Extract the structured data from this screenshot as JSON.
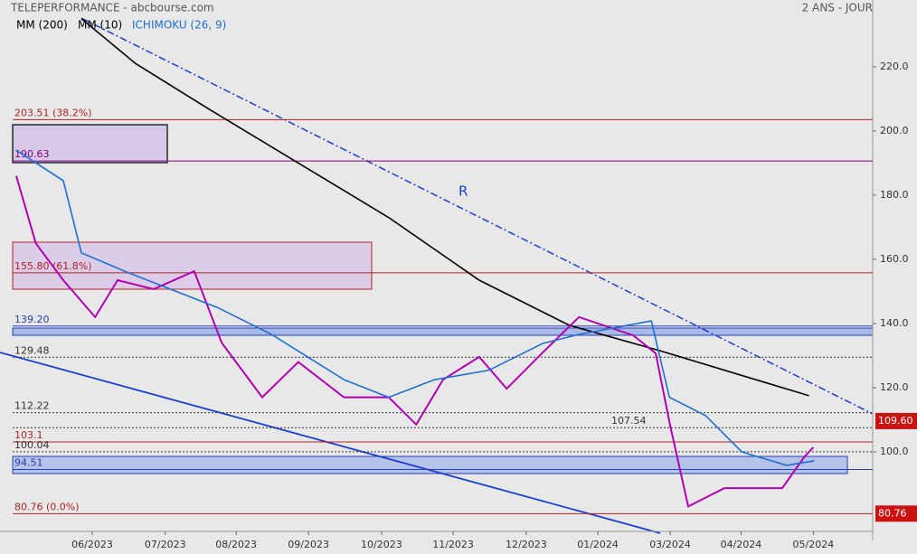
{
  "chart_data": {
    "type": "line",
    "title": "TELEPERFORMANCE - abcbourse.com",
    "subtitle": "2 ANS - JOUR",
    "annotation": "R",
    "xlim": [
      -1.275,
      10.79
    ],
    "xticks": [
      {
        "value": 0,
        "label": "06/2023"
      },
      {
        "value": 1.01,
        "label": "07/2023"
      },
      {
        "value": 1.99,
        "label": "08/2023"
      },
      {
        "value": 2.99,
        "label": "09/2023"
      },
      {
        "value": 4,
        "label": "10/2023"
      },
      {
        "value": 4.99,
        "label": "11/2023"
      },
      {
        "value": 6,
        "label": "12/2023"
      },
      {
        "value": 6.99,
        "label": "01/2024"
      },
      {
        "value": 7.99,
        "label": "03/2024"
      },
      {
        "value": 8.97,
        "label": "04/2024"
      },
      {
        "value": 9.97,
        "label": "05/2024"
      }
    ],
    "ylim": [
      72.4,
      240.8
    ],
    "yticks": [
      {
        "value": 100,
        "label": "100.0"
      },
      {
        "value": 120,
        "label": "120.0"
      },
      {
        "value": 140,
        "label": "140.0"
      },
      {
        "value": 160,
        "label": "160.0"
      },
      {
        "value": 180,
        "label": "180.0"
      },
      {
        "value": 200,
        "label": "200.0"
      },
      {
        "value": 220,
        "label": "220.0"
      }
    ],
    "series": [
      {
        "name": "MM (200)",
        "color": "#000000",
        "x": [
          -0.15,
          0.6,
          1.6,
          2.85,
          4.1,
          5.35,
          6.6,
          7.85,
          9.1,
          9.91
        ],
        "values": [
          235,
          221,
          207,
          190,
          173,
          153.5,
          139.4,
          131.5,
          123,
          117.5
        ]
      },
      {
        "name": "MM (10)",
        "color": "#b000b0",
        "x": [
          -1.05,
          -0.78,
          -0.4,
          0.04,
          0.35,
          0.85,
          1.41,
          1.79,
          2.35,
          2.85,
          3.48,
          4.1,
          4.48,
          4.85,
          5.35,
          5.73,
          6.23,
          6.73,
          7.48,
          7.79,
          7.99,
          8.24,
          8.74,
          9.24,
          9.54,
          9.85,
          9.97
        ],
        "values": [
          186,
          165,
          153.5,
          142,
          153.5,
          150.7,
          156.3,
          134,
          117,
          128,
          117,
          117,
          108.5,
          122.5,
          129.6,
          119.7,
          131,
          142,
          136.3,
          130.7,
          108.2,
          83,
          88.7,
          88.7,
          88.7,
          98.6,
          101.4
        ]
      },
      {
        "name": "ICHIMOKU (26, 9)",
        "color": "#1e6fd0",
        "x": [
          -1.05,
          -0.4,
          -0.15,
          0.48,
          1.73,
          2.48,
          3.48,
          4.1,
          4.73,
          5.48,
          6.23,
          6.73,
          7.73,
          7.98,
          8.48,
          8.98,
          9.6,
          9.98
        ],
        "values": [
          194,
          184.5,
          162,
          156,
          145,
          136.6,
          122.5,
          117,
          122.5,
          125.4,
          133.8,
          136.6,
          140.8,
          117,
          111.3,
          100,
          95.8,
          97.2
        ]
      }
    ],
    "levels": [
      {
        "value": 203.51,
        "label": "203.51  (38.2%)",
        "color": "#b22222",
        "dash": false
      },
      {
        "value": 190.63,
        "label": "190.63",
        "color": "#800080",
        "dash": false
      },
      {
        "value": 155.8,
        "label": "155.80  (61.8%)",
        "color": "#b22222",
        "dash": false
      },
      {
        "value": 139.2,
        "label": "139.20",
        "color": "#2a3fb0",
        "dash": false
      },
      {
        "value": 129.48,
        "label": "129.48",
        "color": "#333333",
        "dash": true
      },
      {
        "value": 112.22,
        "label": "112.22",
        "color": "#333333",
        "dash": true
      },
      {
        "value": 107.54,
        "label": "107.54",
        "color": "#333333",
        "dash": true
      },
      {
        "value": 103.1,
        "label": "103.1",
        "color": "#b22222",
        "dash": false
      },
      {
        "value": 100.04,
        "label": "100.04",
        "color": "#333333",
        "dash": true
      },
      {
        "value": 94.51,
        "label": "94.51",
        "color": "#2a3fb0",
        "dash": false
      },
      {
        "value": 80.76,
        "label": "80.76  (0.0%)",
        "color": "#b22222",
        "dash": false
      }
    ],
    "last": {
      "value": 109.6,
      "label": "109.60"
    },
    "low_tag": {
      "value": 80.76,
      "label": "80.76"
    }
  }
}
